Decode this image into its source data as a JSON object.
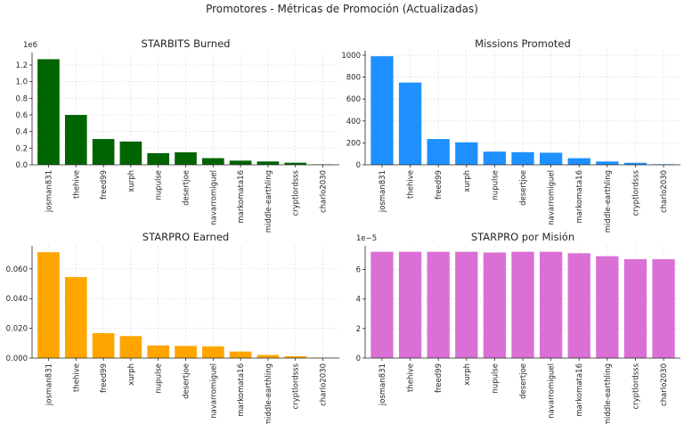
{
  "suptitle": "Promotores - Métricas de Promoción (Actualizadas)",
  "chart_data": [
    {
      "type": "bar",
      "title": "STARBITS Burned",
      "color": "#006400",
      "categories": [
        "josman831",
        "thehive",
        "freed99",
        "xurph",
        "nupulse",
        "desertjoe",
        "navarromiguel",
        "markomata16",
        "middle-earthling",
        "cryptlordsss",
        "charlo2030"
      ],
      "values": [
        1.27,
        0.6,
        0.31,
        0.28,
        0.14,
        0.15,
        0.08,
        0.05,
        0.04,
        0.025,
        0.005
      ],
      "ylim": [
        0,
        1.35
      ],
      "yticks": [
        0,
        0.2,
        0.4,
        0.6,
        0.8,
        1.0,
        1.2
      ],
      "ytick_labels": [
        "0.0",
        "0.2",
        "0.4",
        "0.6",
        "0.8",
        "1.0",
        "1.2"
      ],
      "offset_label": "1e6",
      "xlabel": "",
      "ylabel": "",
      "grid": true
    },
    {
      "type": "bar",
      "title": "Missions Promoted",
      "color": "#1e90ff",
      "categories": [
        "josman831",
        "thehive",
        "freed99",
        "xurph",
        "nupulse",
        "desertjoe",
        "navarromiguel",
        "markomata16",
        "middle-earthling",
        "cryptlordsss",
        "charlo2030"
      ],
      "values": [
        990,
        750,
        235,
        205,
        120,
        115,
        110,
        60,
        30,
        18,
        5
      ],
      "ylim": [
        0,
        1040
      ],
      "yticks": [
        0,
        200,
        400,
        600,
        800,
        1000
      ],
      "ytick_labels": [
        "0",
        "200",
        "400",
        "600",
        "800",
        "1000"
      ],
      "offset_label": "",
      "xlabel": "",
      "ylabel": "",
      "grid": true
    },
    {
      "type": "bar",
      "title": "STARPRO Earned",
      "color": "#ffa500",
      "categories": [
        "josman831",
        "thehive",
        "freed99",
        "xurph",
        "nupulse",
        "desertjoe",
        "navarromiguel",
        "markomata16",
        "middle-earthling",
        "cryptlordsss",
        "charlo2030"
      ],
      "values": [
        0.0712,
        0.0545,
        0.0168,
        0.0148,
        0.0085,
        0.0082,
        0.0079,
        0.0044,
        0.0021,
        0.0012,
        0.0003
      ],
      "ylim": [
        0,
        0.0755
      ],
      "yticks": [
        0,
        0.02,
        0.04,
        0.06
      ],
      "ytick_labels": [
        "0.000",
        "0.020",
        "0.040",
        "0.060"
      ],
      "offset_label": "",
      "xlabel": "",
      "ylabel": "",
      "grid": true
    },
    {
      "type": "bar",
      "title": "STARPRO por Misión",
      "color": "#da70d6",
      "categories": [
        "josman831",
        "thehive",
        "freed99",
        "xurph",
        "nupulse",
        "desertjoe",
        "navarromiguel",
        "markomata16",
        "middle-earthling",
        "cryptlordsss",
        "charlo2030"
      ],
      "values": [
        7.2,
        7.2,
        7.2,
        7.2,
        7.15,
        7.2,
        7.2,
        7.1,
        6.9,
        6.7,
        6.7
      ],
      "ylim": [
        0,
        7.6
      ],
      "yticks": [
        0,
        2,
        4,
        6
      ],
      "ytick_labels": [
        "0",
        "2",
        "4",
        "6"
      ],
      "offset_label": "1e−5",
      "xlabel": "",
      "ylabel": "",
      "grid": true
    }
  ]
}
